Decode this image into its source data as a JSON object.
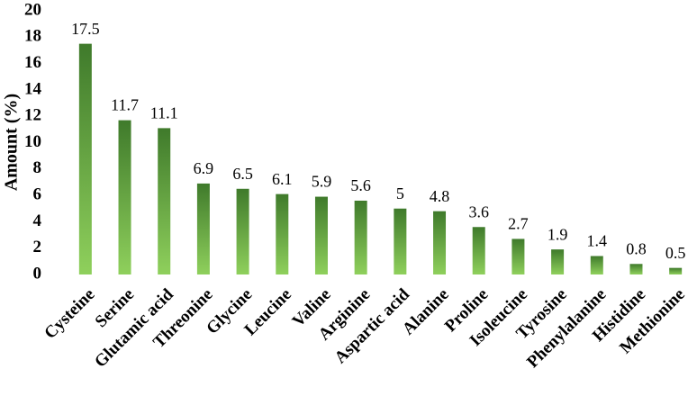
{
  "chart_data": {
    "type": "bar",
    "y_label": "Amount (%)",
    "categories": [
      "Cysteine",
      "Serine",
      "Glutamic acid",
      "Threonine",
      "Glycine",
      "Leucine",
      "Valine",
      "Arginine",
      "Aspartic acid",
      "Alanine",
      "Proline",
      "Isoleucine",
      "Tyrosine",
      "Phenylalanine",
      "Histidine",
      "Methionine"
    ],
    "values": [
      17.5,
      11.7,
      11.1,
      6.9,
      6.5,
      6.1,
      5.9,
      5.6,
      5,
      4.8,
      3.6,
      2.7,
      1.9,
      1.4,
      0.8,
      0.5
    ],
    "ylim": [
      0,
      20
    ],
    "yticks": [
      0,
      2,
      4,
      6,
      8,
      10,
      12,
      14,
      16,
      18,
      20
    ]
  }
}
